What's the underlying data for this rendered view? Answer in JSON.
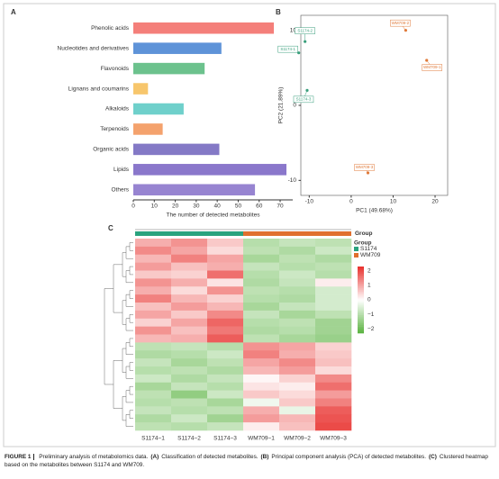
{
  "chart_data": [
    {
      "type": "bar",
      "panel": "A",
      "orientation": "horizontal",
      "xlabel": "The number of detected metabolites",
      "categories": [
        "Phenolic acids",
        "Nucleotides and derivatives",
        "Flavonoids",
        "Lignans and coumarins",
        "Alkaloids",
        "Terpenoids",
        "Organic acids",
        "Lipids",
        "Others"
      ],
      "values": [
        67,
        42,
        34,
        7,
        24,
        14,
        41,
        73,
        58
      ],
      "colors": [
        "#f47f7a",
        "#5e93d8",
        "#6cc28d",
        "#f7c66c",
        "#6fd0cb",
        "#f4a26d",
        "#8479c6",
        "#8a77cb",
        "#9784d1"
      ],
      "xlim": [
        0,
        76
      ],
      "xticks": [
        0,
        10,
        20,
        30,
        40,
        50,
        60,
        70
      ]
    },
    {
      "type": "scatter",
      "panel": "B",
      "xlabel": "PC1 (49.68%)",
      "ylabel": "PC2 (21.89%)",
      "series": [
        {
          "name": "S1174",
          "color": "#3a9f7c",
          "labels": [
            "S1174-1",
            "S1174-2",
            "S1174-3"
          ],
          "x": [
            -12.5,
            -11,
            -10.5
          ],
          "values": [
            7,
            8.5,
            2
          ]
        },
        {
          "name": "WM709",
          "color": "#e07a3a",
          "labels": [
            "WM709-1",
            "WM709-2",
            "WM709-3"
          ],
          "x": [
            18,
            13,
            4
          ],
          "values": [
            6,
            10,
            -9
          ]
        }
      ],
      "xlim": [
        -12,
        23
      ],
      "ylim": [
        -12,
        12
      ],
      "xticks": [
        -10,
        0,
        10,
        20
      ],
      "yticks": [
        10,
        0,
        -10
      ]
    },
    {
      "type": "heatmap",
      "panel": "C",
      "group_title": "Group",
      "legend_title": "Group",
      "columns": [
        "S1174−1",
        "S1174−2",
        "S1174−3",
        "WM709−1",
        "WM709−2",
        "WM709−3"
      ],
      "groups": [
        {
          "name": "S1174",
          "color": "#2aa37e"
        },
        {
          "name": "WM709",
          "color": "#e0702f"
        }
      ],
      "column_group": [
        "S1174",
        "S1174",
        "S1174",
        "WM709",
        "WM709",
        "WM709"
      ],
      "zlim": [
        -2.3,
        2.3
      ],
      "zticks": [
        {
          "value": 2,
          "label": "2"
        },
        {
          "value": 1,
          "label": "1"
        },
        {
          "value": 0,
          "label": "0"
        },
        {
          "value": -1,
          "label": "−1"
        },
        {
          "value": -2,
          "label": "−2"
        }
      ],
      "values": [
        [
          0.9,
          1.2,
          0.6,
          -1.0,
          -0.8,
          -0.9
        ],
        [
          1.3,
          1.0,
          0.4,
          -0.9,
          -1.1,
          -0.7
        ],
        [
          0.8,
          1.4,
          1.0,
          -1.2,
          -0.9,
          -1.1
        ],
        [
          1.1,
          0.7,
          0.9,
          -0.8,
          -1.0,
          -0.9
        ],
        [
          0.6,
          0.5,
          1.6,
          -1.0,
          -0.7,
          -1.0
        ],
        [
          1.2,
          0.9,
          0.3,
          -1.1,
          -0.8,
          0.2
        ],
        [
          0.9,
          0.4,
          1.2,
          -0.9,
          -1.0,
          -0.6
        ],
        [
          1.4,
          0.8,
          0.5,
          -1.0,
          -1.1,
          -0.6
        ],
        [
          0.7,
          1.1,
          0.8,
          -1.2,
          -0.8,
          -0.6
        ],
        [
          1.0,
          0.6,
          1.3,
          -0.8,
          -1.2,
          -0.9
        ],
        [
          0.5,
          1.0,
          1.7,
          -1.0,
          -0.9,
          -1.3
        ],
        [
          1.2,
          0.7,
          1.5,
          -1.1,
          -1.0,
          -1.3
        ],
        [
          0.8,
          0.9,
          1.8,
          -0.9,
          -1.2,
          -1.4
        ],
        [
          -0.9,
          -0.8,
          -1.0,
          1.2,
          1.0,
          0.5
        ],
        [
          -1.1,
          -1.0,
          -0.7,
          1.4,
          0.9,
          0.6
        ],
        [
          -0.8,
          -1.2,
          -0.9,
          1.0,
          1.3,
          0.7
        ],
        [
          -1.0,
          -0.9,
          -1.1,
          0.8,
          1.1,
          0.4
        ],
        [
          -0.7,
          -1.1,
          -0.8,
          0.1,
          0.5,
          1.3
        ],
        [
          -1.2,
          -0.8,
          -1.0,
          0.3,
          0.2,
          1.6
        ],
        [
          -0.9,
          -1.5,
          -0.7,
          0.6,
          0.4,
          1.1
        ],
        [
          -1.0,
          -0.9,
          -1.2,
          -0.2,
          0.6,
          1.4
        ],
        [
          -0.8,
          -1.0,
          -0.9,
          0.9,
          -0.3,
          1.8
        ],
        [
          -1.1,
          -0.7,
          -1.3,
          1.1,
          0.8,
          1.9
        ],
        [
          -0.9,
          -1.0,
          -0.8,
          0.2,
          0.7,
          2.0
        ]
      ]
    }
  ],
  "caption": {
    "label": "FIGURE 1",
    "segments": [
      {
        "text": "Preliminary analysis of metabolomics data.",
        "bold": false
      },
      {
        "text": "(A)",
        "bold": true
      },
      {
        "text": "Classification of detected metabolites.",
        "bold": false
      },
      {
        "text": "(B)",
        "bold": true
      },
      {
        "text": "Principal component analysis (PCA) of detected metabolites.",
        "bold": false
      },
      {
        "text": "(C)",
        "bold": true
      },
      {
        "text": "Clustered heatmap based on the metabolites between S1174 and WM709.",
        "bold": false
      }
    ]
  }
}
